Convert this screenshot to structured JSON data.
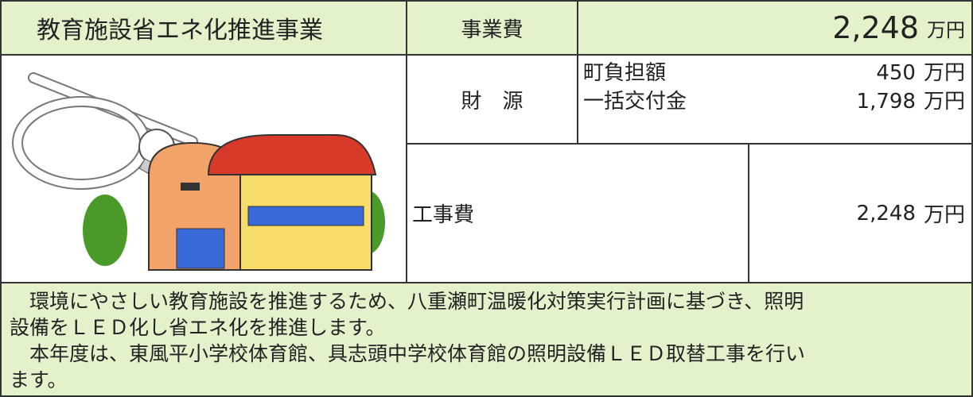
{
  "header": {
    "title": "教育施設省エネ化推進事業",
    "cost_label": "事業費",
    "cost_value": "2,248",
    "cost_unit": "万円"
  },
  "funding": {
    "label": "財　源",
    "items": [
      {
        "name": "町負担額",
        "value": "450",
        "unit": "万円"
      },
      {
        "name": "一括交付金",
        "value": "1,798",
        "unit": "万円"
      }
    ]
  },
  "construction": {
    "label": "工事費",
    "value": "2,248",
    "unit": "万円"
  },
  "description": {
    "lines": [
      "　環境にやさしい教育施設を推進するため、八重瀬町温暖化対策実行計画に基づき、照明",
      "設備をＬＥＤ化し省エネ化を推進します。",
      "　本年度は、東風平小学校体育館、具志頭中学校体育館の照明設備ＬＥＤ取替工事を行い",
      "ます。"
    ]
  }
}
